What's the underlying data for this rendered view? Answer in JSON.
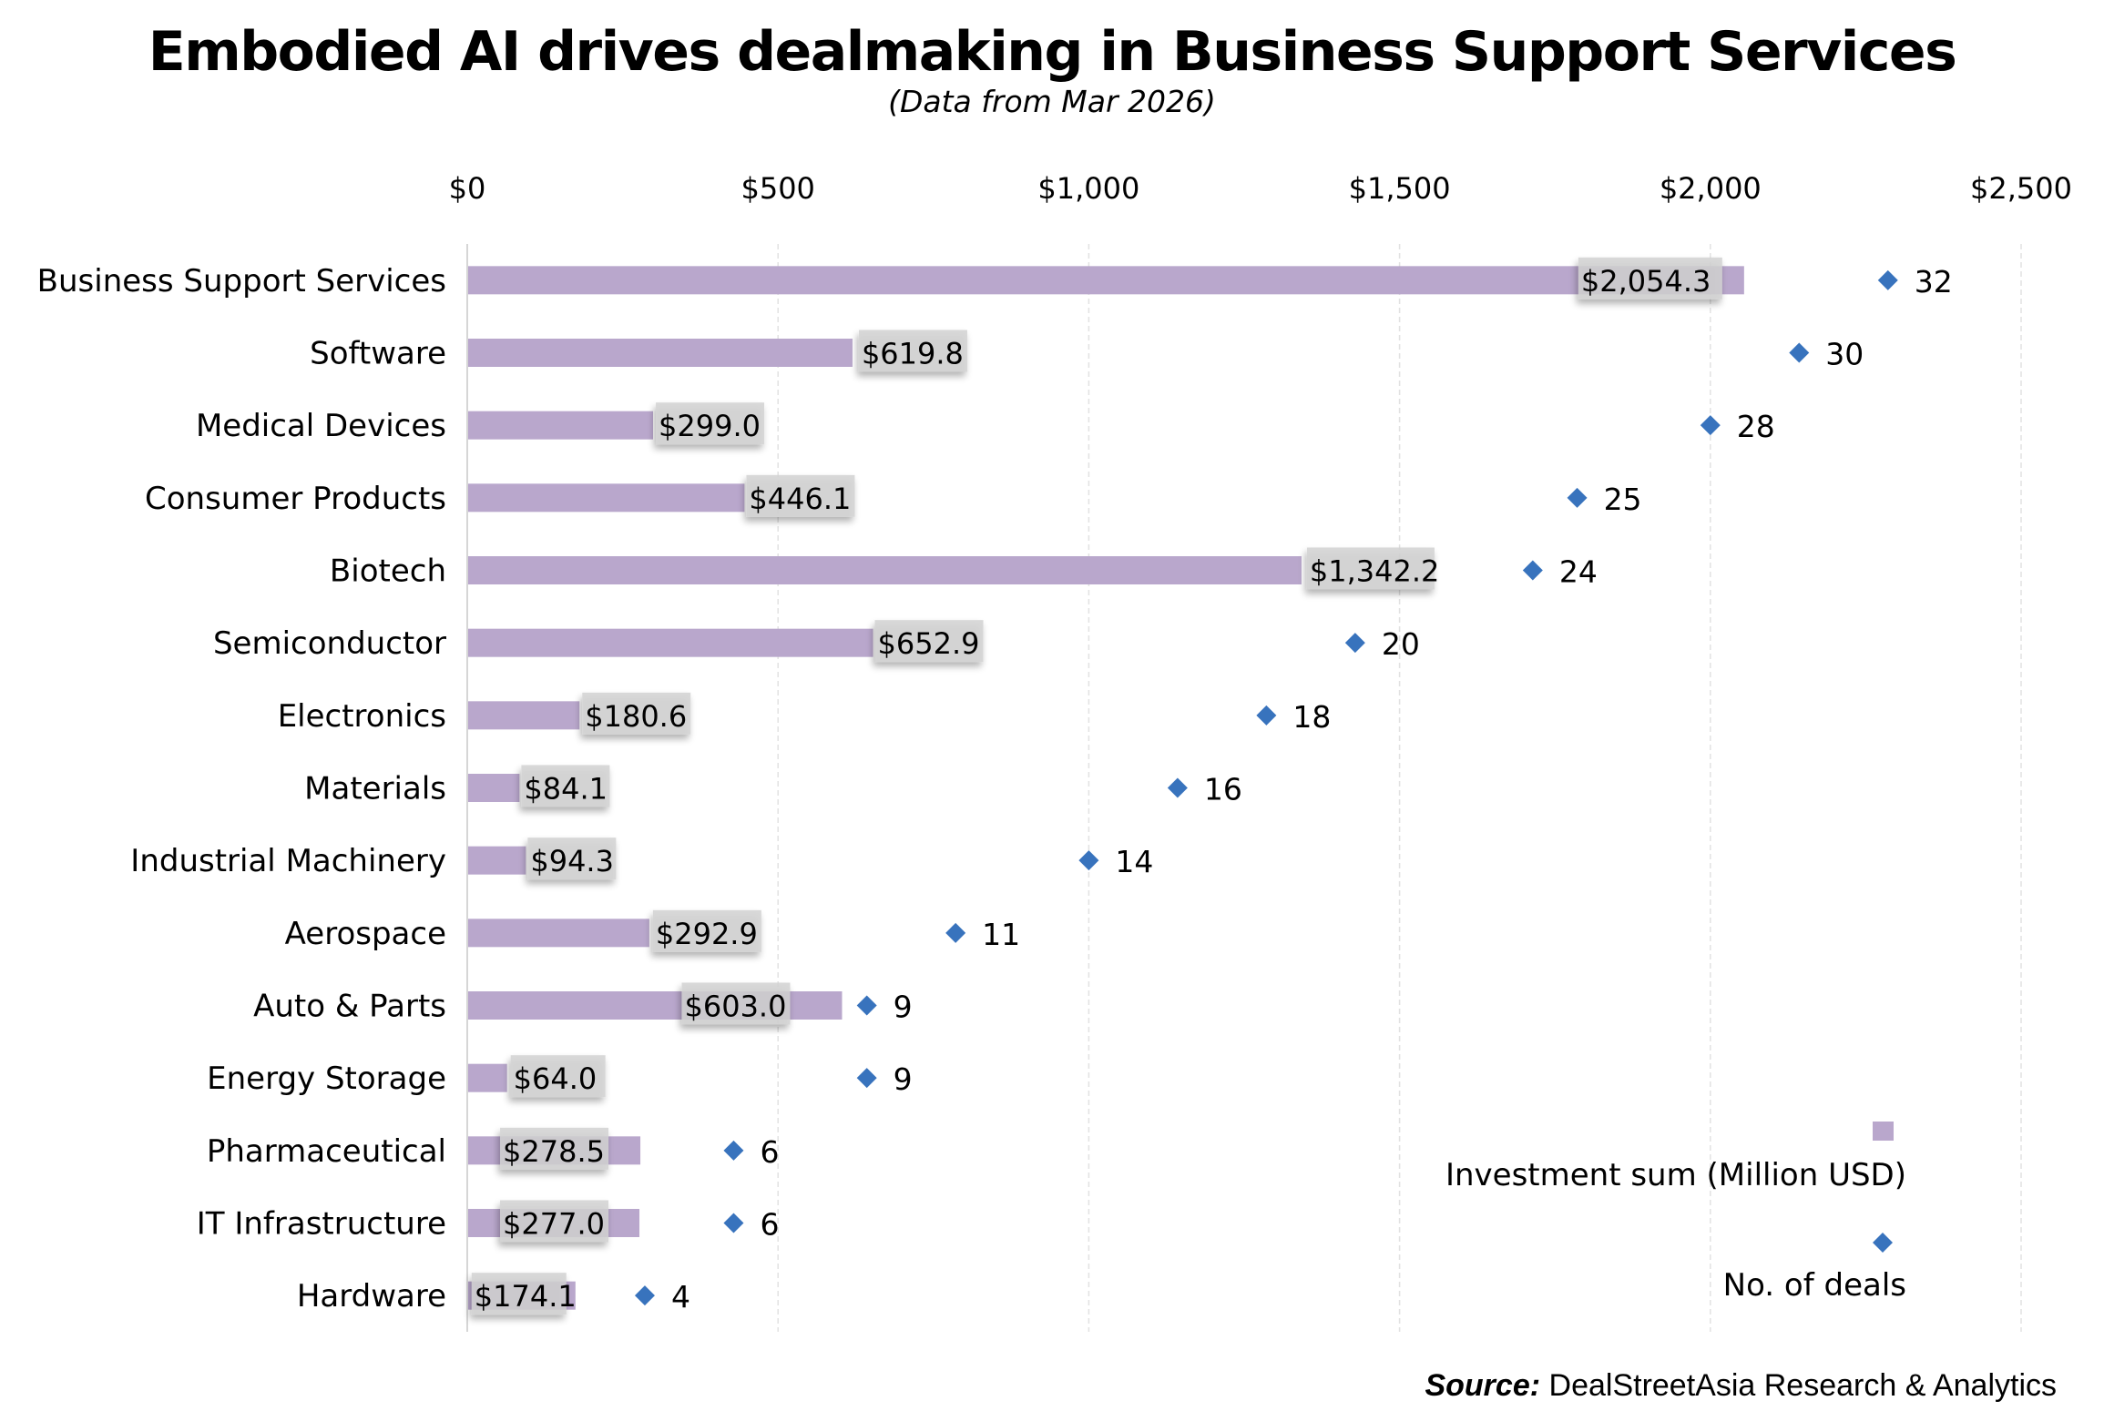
{
  "title": "Embodied AI drives dealmaking in Business Support Services",
  "subtitle": "(Data from Mar 2026)",
  "source": {
    "label": "Source:",
    "text": "DealStreetAsia Research & Analytics"
  },
  "colors": {
    "bar": "#b9a7cc",
    "diamond": "#3873bd",
    "label_box": "#d2d2d2",
    "grid": "#e2e2e2",
    "axis": "#d6d6d6"
  },
  "chart_data": {
    "type": "bar",
    "orientation": "horizontal",
    "title": "Embodied AI drives dealmaking in Business Support Services",
    "subtitle": "(Data from Mar 2026)",
    "categories": [
      "Business Support Services",
      "Software",
      "Medical Devices",
      "Consumer Products",
      "Biotech",
      "Semiconductor",
      "Electronics",
      "Materials",
      "Industrial Machinery",
      "Aerospace",
      "Auto & Parts",
      "Energy Storage",
      "Pharmaceutical",
      "IT Infrastructure",
      "Hardware"
    ],
    "series": [
      {
        "name": "Investment sum (Million USD)",
        "type": "bar",
        "axis": "primary",
        "values": [
          2054.3,
          619.8,
          299.0,
          446.1,
          1342.2,
          652.9,
          180.6,
          84.1,
          94.3,
          292.9,
          603.0,
          64.0,
          278.5,
          277.0,
          174.1
        ],
        "data_labels": [
          "$2,054.3",
          "$619.8",
          "$299.0",
          "$446.1",
          "$1,342.2",
          "$652.9",
          "$180.6",
          "$84.1",
          "$94.3",
          "$292.9",
          "$603.0",
          "$64.0",
          "$278.5",
          "$277.0",
          "$174.1"
        ]
      },
      {
        "name": "No. of deals",
        "type": "scatter",
        "marker": "diamond",
        "axis": "secondary",
        "values": [
          32,
          30,
          28,
          25,
          24,
          20,
          18,
          16,
          14,
          11,
          9,
          9,
          6,
          6,
          4
        ],
        "data_labels": [
          "32",
          "30",
          "28",
          "25",
          "24",
          "20",
          "18",
          "16",
          "14",
          "11",
          "9",
          "9",
          "6",
          "6",
          "4"
        ]
      }
    ],
    "xaxis": {
      "position": "top",
      "range": [
        0,
        2500
      ],
      "ticks": [
        0,
        500,
        1000,
        1500,
        2000,
        2500
      ],
      "tick_labels": [
        "$0",
        "$500",
        "$1,000",
        "$1,500",
        "$2,000",
        "$2,500"
      ]
    },
    "secondary_axis": {
      "range": [
        0,
        35
      ],
      "visible": false
    },
    "grid": true,
    "legend": {
      "position": "bottom-right",
      "entries": [
        "Investment sum (Million USD)",
        "No. of deals"
      ]
    }
  }
}
